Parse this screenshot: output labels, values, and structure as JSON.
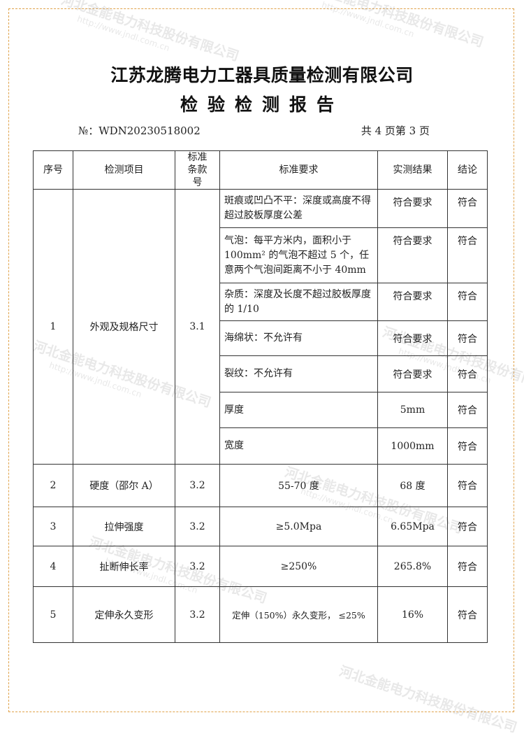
{
  "watermark": {
    "company": "河北金能电力科技股份有限公司",
    "url": "http://www.jndl.com.cn"
  },
  "header": {
    "company": "江苏龙腾电力工器具质量检测有限公司",
    "title": "检验检测报告",
    "report_no": "№：WDN20230518002",
    "page_info": "共 4 页第 3 页"
  },
  "table": {
    "columns": [
      "序号",
      "检测项目",
      "标准条款号",
      "标准要求",
      "实测结果",
      "结论"
    ],
    "group1": {
      "no": "1",
      "item": "外观及规格尺寸",
      "clause": "3.1",
      "rows": [
        {
          "req": "斑痕或凹凸不平：深度或高度不得超过胶板厚度公差",
          "result": "符合要求",
          "conclusion": "符合"
        },
        {
          "req": "气泡：每平方米内，面积小于100mm² 的气泡不超过 5 个，任意两个气泡间距离不小于 40mm",
          "result": "符合要求",
          "conclusion": "符合"
        },
        {
          "req": "杂质：深度及长度不超过胶板厚度的 1/10",
          "result": "符合要求",
          "conclusion": "符合"
        },
        {
          "req": "海绵状：不允许有",
          "result": "符合要求",
          "conclusion": "符合"
        },
        {
          "req": "裂纹：不允许有",
          "result": "符合要求",
          "conclusion": "符合"
        },
        {
          "req": "厚度",
          "result": "5mm",
          "conclusion": "符合"
        },
        {
          "req": "宽度",
          "result": "1000mm",
          "conclusion": "符合"
        }
      ]
    },
    "rows": [
      {
        "no": "2",
        "item": "硬度（邵尔 A）",
        "clause": "3.2",
        "req": "55-70 度",
        "result": "68 度",
        "conclusion": "符合"
      },
      {
        "no": "3",
        "item": "拉伸强度",
        "clause": "3.2",
        "req": "≥5.0Mpa",
        "result": "6.65Mpa",
        "conclusion": "符合"
      },
      {
        "no": "4",
        "item": "扯断伸长率",
        "clause": "3.2",
        "req": "≥250%",
        "result": "265.8%",
        "conclusion": "符合"
      },
      {
        "no": "5",
        "item": "定伸永久变形",
        "clause": "3.2",
        "req": "定伸（150%）永久变形， ≤25%",
        "result": "16%",
        "conclusion": "符合"
      }
    ]
  }
}
